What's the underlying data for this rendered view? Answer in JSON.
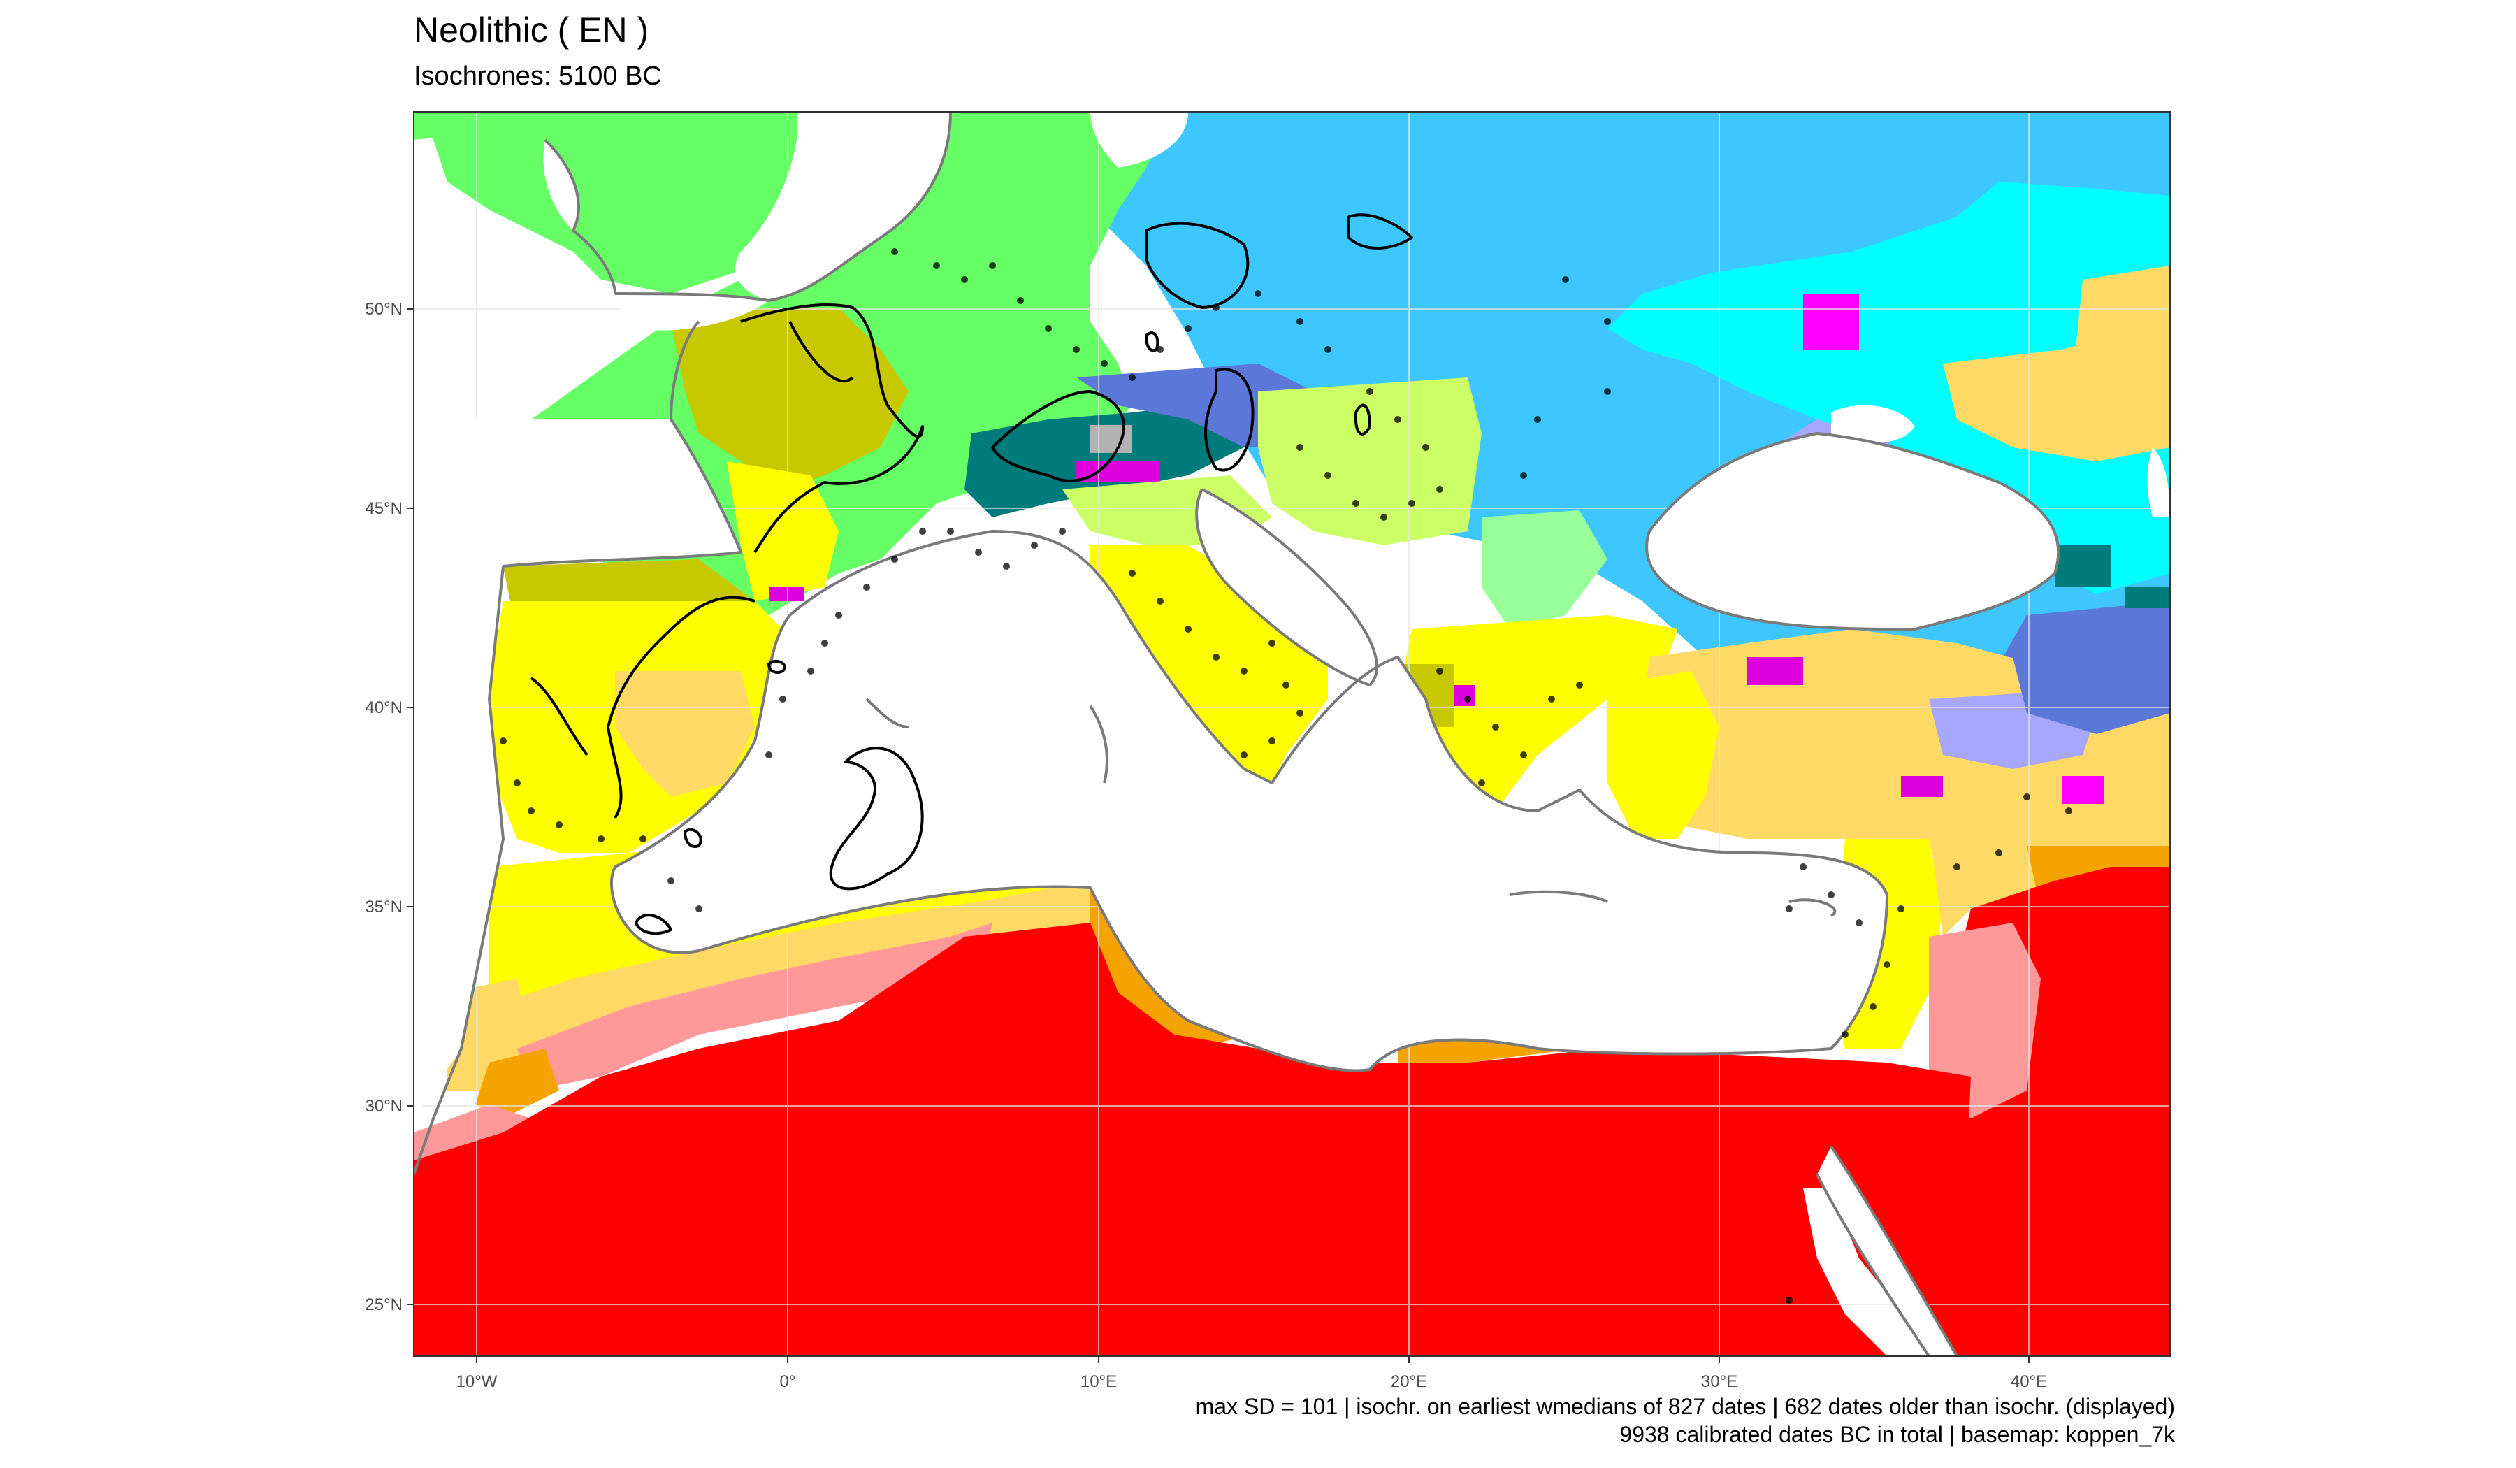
{
  "title": "Neolithic ( EN )",
  "subtitle": "Isochrones: 5100 BC",
  "caption_line1": "max SD = 101 | isochr. on earliest wmedians of 827 dates | 682 dates older than isochr. (displayed)",
  "caption_line2": "9938 calibrated dates BC in total | basemap: koppen_7k",
  "axes": {
    "x_ticks": [
      "10°W",
      "0°",
      "10°E",
      "20°E",
      "30°E",
      "40°E"
    ],
    "y_ticks": [
      "50°N",
      "45°N",
      "40°N",
      "35°N",
      "30°N",
      "25°N"
    ]
  },
  "colors": {
    "desert_hot": "#ff0000",
    "desert_cold": "#ff9999",
    "steppe_hot": "#f5a300",
    "steppe_cold": "#ffd966",
    "mediterranean_hot": "#ffff00",
    "mediterranean_warm": "#c8c800",
    "oceanic": "#66ff66",
    "humid_subtropical": "#ccff66",
    "continental_warm": "#3ec7ff",
    "continental_cold": "#00ffff",
    "continental_dry": "#a7a7ff",
    "subarctic": "#5b78d9",
    "alpine_teal": "#007b7b",
    "tundra": "#b2b2b2",
    "magenta": "#ff00ff",
    "isochrone_line": "#000000",
    "coastline": "#7a7a7a"
  }
}
